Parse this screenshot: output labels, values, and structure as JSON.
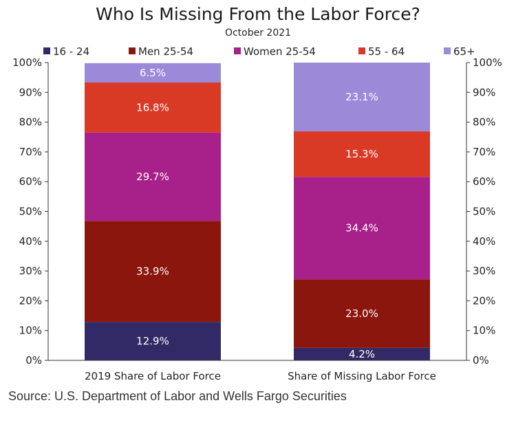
{
  "chart_data": {
    "type": "bar",
    "stacked": true,
    "title": "Who Is Missing From the Labor Force?",
    "subtitle": "October 2021",
    "categories": [
      "2019 Share of Labor Force",
      "Share of Missing Labor Force"
    ],
    "series": [
      {
        "name": "16 - 24",
        "color": "#322a66",
        "values": [
          12.9,
          4.2
        ]
      },
      {
        "name": "Men 25-54",
        "color": "#8a160d",
        "values": [
          33.9,
          23.0
        ]
      },
      {
        "name": "Women 25-54",
        "color": "#a8208a",
        "values": [
          29.7,
          34.4
        ]
      },
      {
        "name": "55 - 64",
        "color": "#d93a26",
        "values": [
          16.8,
          15.3
        ]
      },
      {
        "name": "65+",
        "color": "#9b8ad8",
        "values": [
          6.5,
          23.1
        ]
      }
    ],
    "data_labels": [
      [
        "12.9%",
        "4.2%"
      ],
      [
        "33.9%",
        "23.0%"
      ],
      [
        "29.7%",
        "34.4%"
      ],
      [
        "16.8%",
        "15.3%"
      ],
      [
        "6.5%",
        "23.1%"
      ]
    ],
    "ylim": [
      0,
      100
    ],
    "yticks": [
      0,
      10,
      20,
      30,
      40,
      50,
      60,
      70,
      80,
      90,
      100
    ],
    "ytick_labels": [
      "0%",
      "10%",
      "20%",
      "30%",
      "40%",
      "50%",
      "60%",
      "70%",
      "80%",
      "90%",
      "100%"
    ],
    "legend_position": "top",
    "grid": false,
    "source": "Source: U.S. Department of Labor and Wells Fargo Securities"
  }
}
